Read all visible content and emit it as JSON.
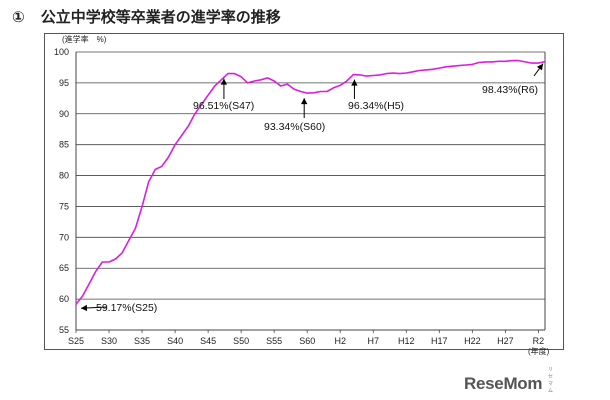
{
  "header": {
    "number": "①",
    "title": "公立中学校等卒業者の進学率の推移"
  },
  "logo": {
    "text": "ReseMom",
    "small": "リセマム"
  },
  "chart_data": {
    "type": "line",
    "title": "公立中学校等卒業者の進学率の推移",
    "ylabel": "(進学率　%)",
    "xlabel": "(年度)",
    "ylim": [
      55,
      100
    ],
    "yticks": [
      55,
      60,
      65,
      70,
      75,
      80,
      85,
      90,
      95,
      100
    ],
    "xticks": [
      "S25",
      "S30",
      "S35",
      "S40",
      "S45",
      "S50",
      "S55",
      "S60",
      "H2",
      "H7",
      "H12",
      "H17",
      "H22",
      "H27",
      "R2"
    ],
    "grid": true,
    "line_color": "#d91ee0",
    "series": [
      {
        "values": [
          59.17,
          60.5,
          62.5,
          64.5,
          66.0,
          66.0,
          66.5,
          67.5,
          69.5,
          71.5,
          75.0,
          79.0,
          81.0,
          81.5,
          83.0,
          85.0,
          86.5,
          88.0,
          90.0,
          91.5,
          93.0,
          94.5,
          95.5,
          96.51,
          96.5,
          96.0,
          95.0,
          95.3,
          95.5,
          95.8,
          95.3,
          94.5,
          94.8,
          94.0,
          93.6,
          93.34,
          93.4,
          93.6,
          93.6,
          94.2,
          94.6,
          95.3,
          96.34,
          96.3,
          96.1,
          96.2,
          96.3,
          96.5,
          96.6,
          96.5,
          96.6,
          96.8,
          97.0,
          97.1,
          97.2,
          97.4,
          97.6,
          97.7,
          97.8,
          97.9,
          98.0,
          98.3,
          98.4,
          98.4,
          98.5,
          98.5,
          98.6,
          98.6,
          98.4,
          98.2,
          98.2,
          98.43
        ]
      }
    ],
    "annotations": [
      {
        "label": "59.17%(S25)",
        "value": 59.17
      },
      {
        "label": "96.51%(S47)",
        "value": 96.51
      },
      {
        "label": "93.34%(S60)",
        "value": 93.34
      },
      {
        "label": "96.34%(H5)",
        "value": 96.34
      },
      {
        "label": "98.43%(R6)",
        "value": 98.43
      }
    ]
  }
}
